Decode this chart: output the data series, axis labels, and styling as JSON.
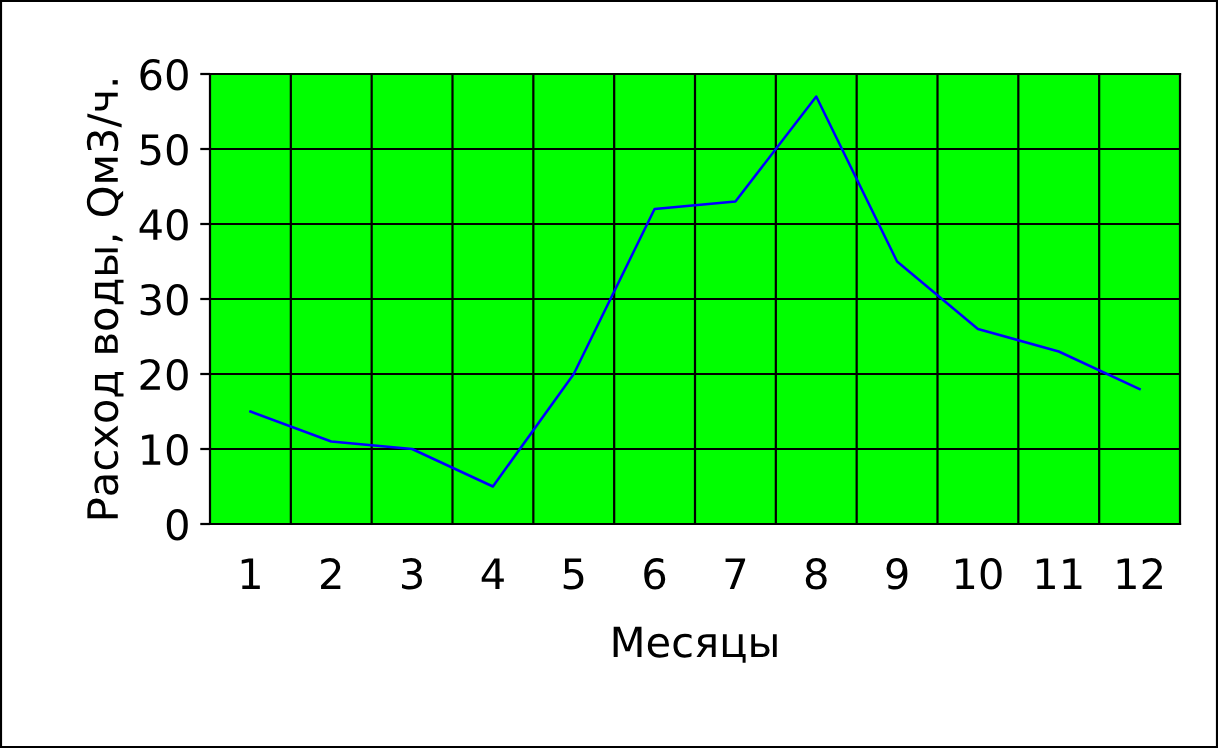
{
  "chart_data": {
    "type": "line",
    "xlabel": "Месяцы",
    "ylabel": "Расход воды, Qм3/ч.",
    "categories": [
      "1",
      "2",
      "3",
      "4",
      "5",
      "6",
      "7",
      "8",
      "9",
      "10",
      "11",
      "12"
    ],
    "series": [
      {
        "color": "#0000ff",
        "values": [
          15,
          11,
          10,
          5,
          20,
          42,
          43,
          57,
          35,
          26,
          23,
          18
        ]
      }
    ],
    "ylim": [
      0,
      60
    ],
    "yticks": [
      0,
      10,
      20,
      30,
      40,
      50,
      60
    ],
    "grid": true,
    "marker": "none",
    "line_style": "solid"
  }
}
